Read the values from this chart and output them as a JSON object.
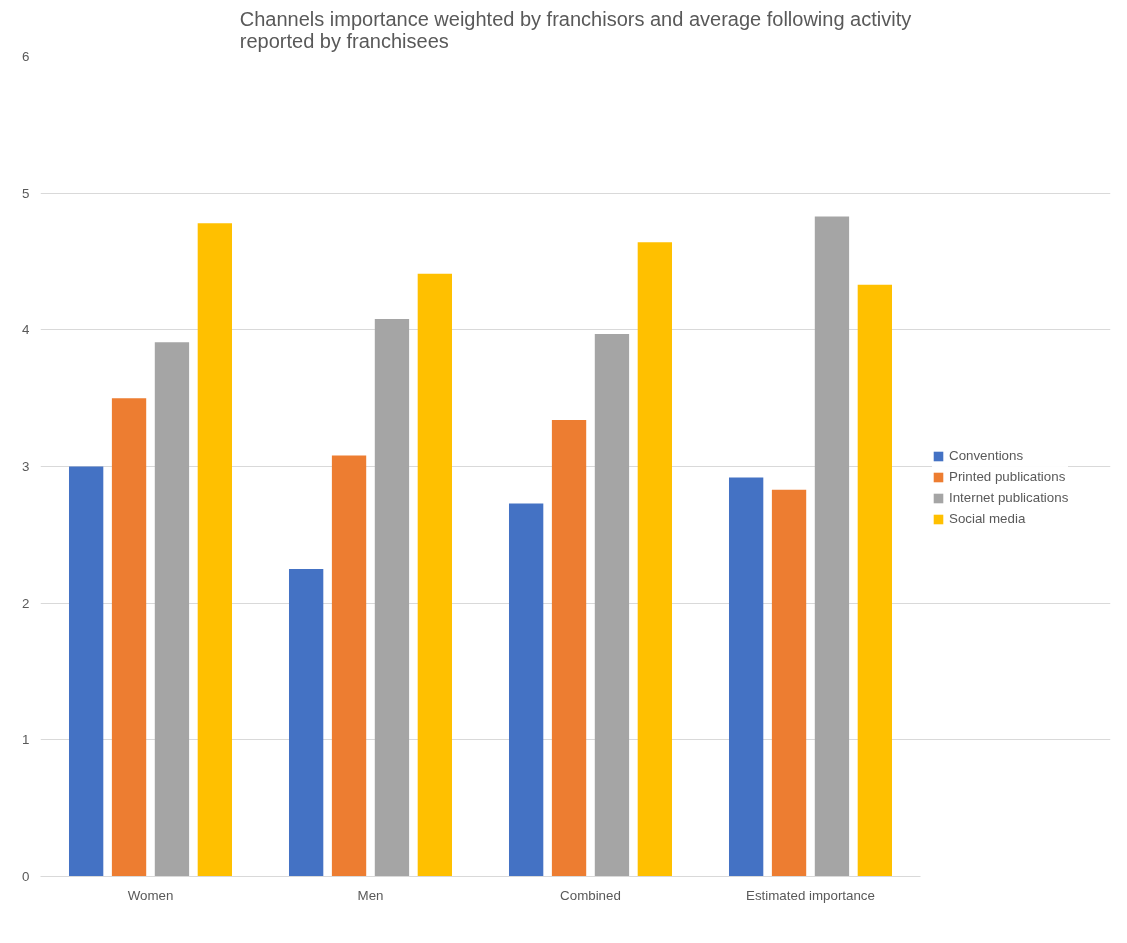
{
  "chart_data": {
    "type": "bar",
    "title": "Channels importance weighted by franchisors and average following activity\nreported by franchisees",
    "categories": [
      "Women",
      "Men",
      "Combined",
      "Estimated importance"
    ],
    "series": [
      {
        "name": "Conventions",
        "color": "#4472c4",
        "values": [
          3.0,
          2.25,
          2.73,
          2.92
        ]
      },
      {
        "name": "Printed publications",
        "color": "#ed7d31",
        "values": [
          3.5,
          3.08,
          3.34,
          2.83
        ]
      },
      {
        "name": "Internet publications",
        "color": "#a5a5a5",
        "values": [
          3.91,
          4.08,
          3.97,
          4.83
        ]
      },
      {
        "name": "Social media",
        "color": "#ffc000",
        "values": [
          4.78,
          4.41,
          4.64,
          4.33
        ]
      }
    ],
    "ylim": [
      0,
      6
    ],
    "yticks": [
      0,
      1,
      2,
      3,
      4,
      5,
      6
    ],
    "grid": "y",
    "legend": "right"
  }
}
